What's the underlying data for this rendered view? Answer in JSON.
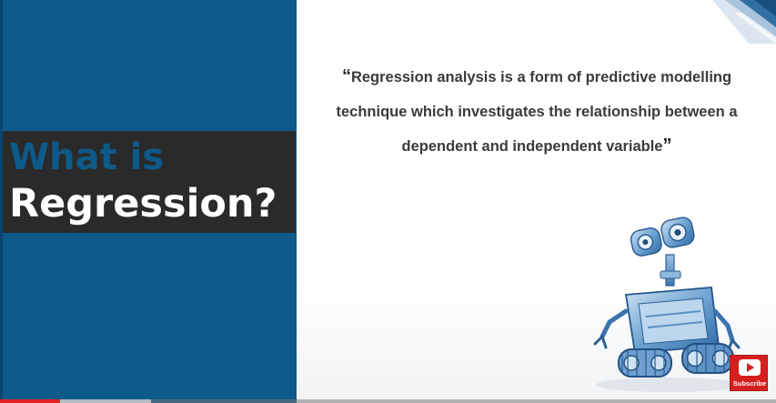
{
  "slide": {
    "title_line1": "What is",
    "title_line2": "Regression?",
    "quote_open": "“",
    "quote_text": "Regression analysis is a form of predictive modelling technique which investigates the relationship between a dependent and independent variable",
    "quote_close": "”"
  },
  "subscribe_button": {
    "label": "Subscribe",
    "icon": "play-icon"
  },
  "video_progress": {
    "played_fraction": 0.077,
    "buffered_fraction": 0.195
  },
  "colors": {
    "left_panel": "#0e5a8a",
    "title_band": "#2a2a2a",
    "title_accent": "#0e5a8a",
    "subscribe": "#d61f1f",
    "progress_played": "#e52222"
  }
}
